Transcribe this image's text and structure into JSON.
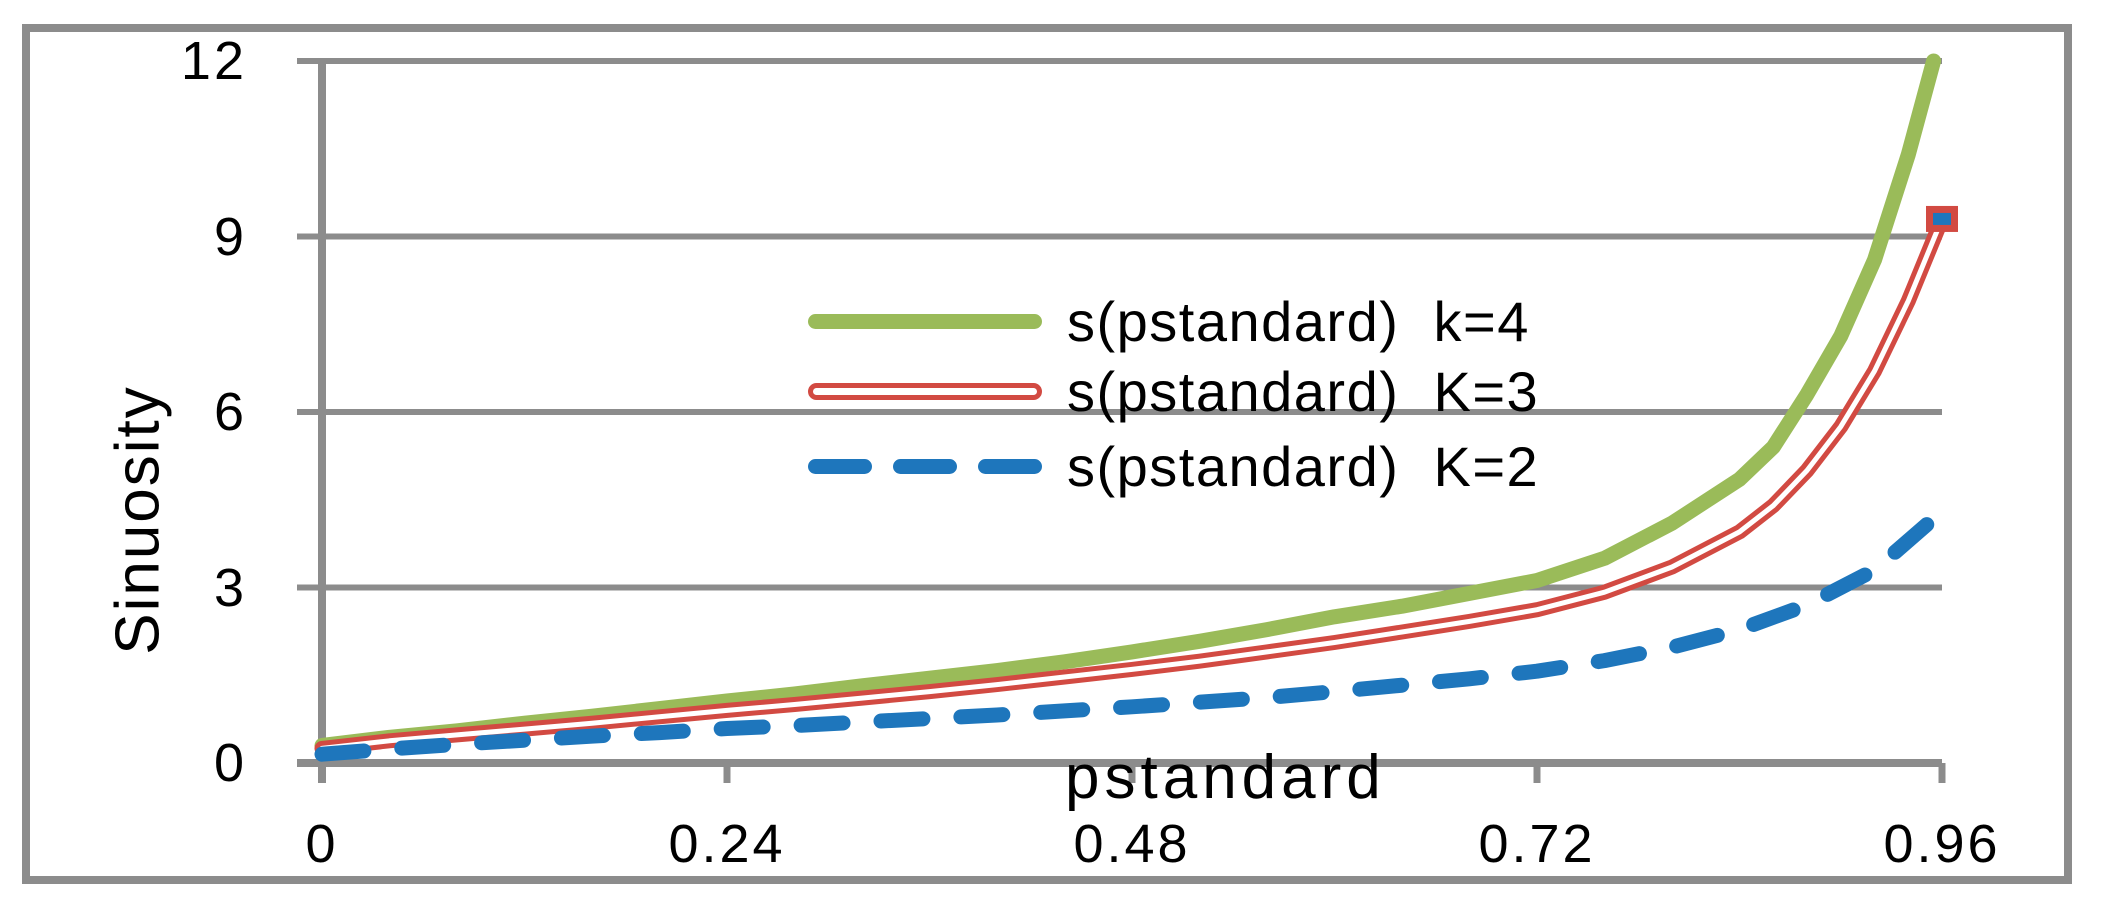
{
  "colors": {
    "frame": "#8C8C8C",
    "grid": "#8C8C8C",
    "axis": "#8C8C8C",
    "background": "#FFFFFF",
    "text": "#000000",
    "series_green": "#9ABB59",
    "series_red": "#D24A42",
    "series_blue": "#1E76BC"
  },
  "chart_data": {
    "type": "line",
    "title": "",
    "xlabel": "pstandard",
    "ylabel": "Sinuosity",
    "xlim": [
      0,
      0.96
    ],
    "ylim": [
      0,
      12
    ],
    "grid": "horizontal",
    "legend_position": "inside-upper-center",
    "x_ticks": {
      "values": [
        0,
        0.24,
        0.48,
        0.72,
        0.96
      ],
      "labels": [
        "0",
        "0.24",
        "0.48",
        "0.72",
        "0.96"
      ]
    },
    "y_ticks": {
      "values": [
        0,
        3,
        6,
        9,
        12
      ],
      "labels": [
        "0",
        "3",
        "6",
        "9",
        "12"
      ]
    },
    "series": [
      {
        "name": "s(pstandard)  k=4",
        "style": "solid",
        "color": "#9ABB59",
        "points": [
          [
            0,
            0.3
          ],
          [
            0.04,
            0.44
          ],
          [
            0.08,
            0.55
          ],
          [
            0.12,
            0.68
          ],
          [
            0.16,
            0.8
          ],
          [
            0.2,
            0.93
          ],
          [
            0.24,
            1.06
          ],
          [
            0.28,
            1.18
          ],
          [
            0.32,
            1.32
          ],
          [
            0.36,
            1.45
          ],
          [
            0.4,
            1.58
          ],
          [
            0.44,
            1.73
          ],
          [
            0.48,
            1.9
          ],
          [
            0.52,
            2.08
          ],
          [
            0.56,
            2.28
          ],
          [
            0.6,
            2.5
          ],
          [
            0.64,
            2.68
          ],
          [
            0.68,
            2.9
          ],
          [
            0.72,
            3.12
          ],
          [
            0.76,
            3.5
          ],
          [
            0.8,
            4.1
          ],
          [
            0.84,
            4.85
          ],
          [
            0.86,
            5.4
          ],
          [
            0.88,
            6.3
          ],
          [
            0.9,
            7.3
          ],
          [
            0.92,
            8.6
          ],
          [
            0.94,
            10.4
          ],
          [
            0.955,
            12.0
          ]
        ]
      },
      {
        "name": "s(pstandard)  K=3",
        "style": "double",
        "color": "#D24A42",
        "core_color": "#FFFFFF",
        "end_marker": {
          "shape": "square",
          "fill": "#1E76BC",
          "stroke": "#D24A42"
        },
        "points": [
          [
            0,
            0.25
          ],
          [
            0.04,
            0.38
          ],
          [
            0.08,
            0.48
          ],
          [
            0.12,
            0.58
          ],
          [
            0.16,
            0.68
          ],
          [
            0.2,
            0.79
          ],
          [
            0.24,
            0.9
          ],
          [
            0.28,
            1.0
          ],
          [
            0.32,
            1.11
          ],
          [
            0.36,
            1.22
          ],
          [
            0.4,
            1.34
          ],
          [
            0.44,
            1.47
          ],
          [
            0.48,
            1.6
          ],
          [
            0.52,
            1.74
          ],
          [
            0.56,
            1.9
          ],
          [
            0.6,
            2.06
          ],
          [
            0.64,
            2.24
          ],
          [
            0.68,
            2.42
          ],
          [
            0.72,
            2.62
          ],
          [
            0.76,
            2.92
          ],
          [
            0.8,
            3.35
          ],
          [
            0.84,
            3.95
          ],
          [
            0.86,
            4.4
          ],
          [
            0.88,
            5.0
          ],
          [
            0.9,
            5.75
          ],
          [
            0.92,
            6.7
          ],
          [
            0.94,
            7.9
          ],
          [
            0.96,
            9.3
          ]
        ]
      },
      {
        "name": "s(pstandard)  K=2",
        "style": "dashed",
        "color": "#1E76BC",
        "points": [
          [
            0,
            0.15
          ],
          [
            0.04,
            0.24
          ],
          [
            0.08,
            0.32
          ],
          [
            0.12,
            0.39
          ],
          [
            0.16,
            0.46
          ],
          [
            0.2,
            0.52
          ],
          [
            0.24,
            0.59
          ],
          [
            0.28,
            0.64
          ],
          [
            0.32,
            0.7
          ],
          [
            0.36,
            0.76
          ],
          [
            0.4,
            0.82
          ],
          [
            0.44,
            0.89
          ],
          [
            0.48,
            0.96
          ],
          [
            0.52,
            1.04
          ],
          [
            0.56,
            1.12
          ],
          [
            0.6,
            1.22
          ],
          [
            0.64,
            1.33
          ],
          [
            0.68,
            1.44
          ],
          [
            0.72,
            1.57
          ],
          [
            0.76,
            1.75
          ],
          [
            0.8,
            1.98
          ],
          [
            0.84,
            2.28
          ],
          [
            0.88,
            2.7
          ],
          [
            0.92,
            3.3
          ],
          [
            0.96,
            4.3
          ]
        ]
      }
    ]
  }
}
